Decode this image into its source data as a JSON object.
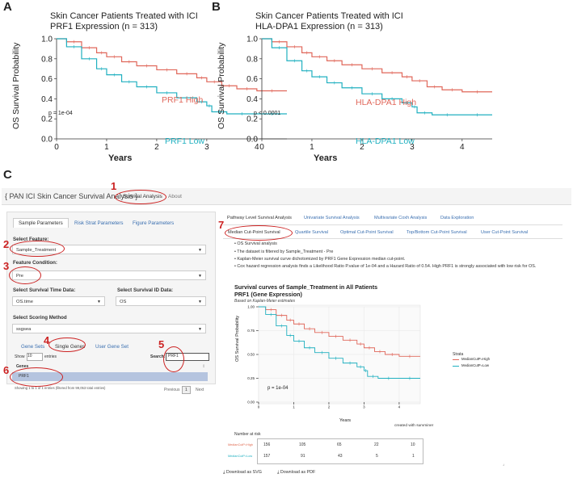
{
  "colors": {
    "high": "#e0675a",
    "low": "#20b0c0",
    "highRisk": "#e06a50",
    "lowRisk": "#20b0c0",
    "annot": "#cc2222",
    "tabLink": "#3a6fb0",
    "rowHighlight": "#b5c4df"
  },
  "panelA": {
    "letter": "A",
    "title_line1": "Skin Cancer Patients Treated with ICI",
    "title_line2": "PRF1 Expression (n = 313)",
    "ylabel": "OS Survival Probability",
    "xlabel": "Years",
    "pvalue": "p = 1e-04",
    "high_label": "PRF1 High",
    "low_label": "PRF1 Low"
  },
  "panelB": {
    "letter": "B",
    "title_line1": "Skin Cancer Patients Treated with ICI",
    "title_line2": "HLA-DPA1 Expression (n = 313)",
    "ylabel": "OS Survival Probability",
    "xlabel": "Years",
    "pvalue": "p < 0.0001",
    "high_label": "HLA-DPA1 High",
    "low_label": "HLA-DPA1 Low"
  },
  "km_axes": {
    "x_ticks": [
      "0",
      "1",
      "2",
      "3",
      "4"
    ],
    "y_ticks": [
      "0.0",
      "0.2",
      "0.4",
      "0.6",
      "0.8",
      "1.0"
    ]
  },
  "panelC": {
    "letter": "C",
    "app_title": "{ PAN ICI Skin Cancer Survival Analysis }",
    "nav": [
      "Survival Analysis",
      "About"
    ],
    "left_tabs": [
      "Sample Parameters",
      "Risk Strat Parameters",
      "Figure Parameters"
    ],
    "select_feature_label": "Select Feature:",
    "select_feature_value": "Sample_Treatment",
    "feature_condition_label": "Feature Condition:",
    "feature_condition_value": "Pre",
    "survival_time_label": "Select Survival Time Data:",
    "survival_time_value": "OS.time",
    "survival_id_label": "Select Survival ID Data:",
    "survival_id_value": "OS",
    "scoring_label": "Select Scoring Method",
    "scoring_value": "ssgsea",
    "gene_tabs": [
      "Gene Sets",
      "Single Genes",
      "User Gene Set"
    ],
    "show_label": "Show",
    "show_value": "10",
    "entries_label": "entries",
    "search_label": "Search:",
    "search_value": "PRF1",
    "genes_header": "Genes",
    "gene_row": "PRF1",
    "showing_text": "Showing 1 to 1 of 1 entries (filtered from 99,053 total entries)",
    "pager": [
      "Previous",
      "1",
      "Next"
    ],
    "right_tabs_row1": [
      "Pathway Level Survival Analysis",
      "Univariate Survival Analysis",
      "Multivariate Coxh Analysis",
      "Data Exploration"
    ],
    "right_tabs_row2": [
      "Median Cut-Point Survival",
      "Quartile Survival",
      "Optimal Cut-Point Survival",
      "Top/Bottom Cut-Point Survival",
      "User Cut-Point Survival"
    ],
    "bullets": [
      "OS Survival analysis",
      "The dataset is filtered by Sample_Treatment - Pre",
      "Kaplan-Meier survival curve dichotomized by PRF1 Gene Expression median cut-point.",
      "Cox hazard regression analysis finds a Likelihood Ratio P.value of 1e-04 and a Hazard Ratio of 0.54. High PRF1 is strongly associated with low risk for OS."
    ],
    "plot_title_line1": "Survival curves of Sample_Treatment  in All Patients",
    "plot_title_line2": "PRF1 (Gene Expression)",
    "plot_subtitle": "Based on Kaplan-Meier estimates",
    "plot_ylabel": "OS Survival Probability",
    "plot_xlabel": "Years",
    "plot_pvalue": "p = 1e-04",
    "plot_x_ticks": [
      "0",
      "1",
      "2",
      "3",
      "4"
    ],
    "plot_y_ticks": [
      "0.00",
      "0.25",
      "0.50",
      "0.75",
      "1.00"
    ],
    "credit": "created with survminer",
    "strata_title": "Strata",
    "strata": [
      "MedianCutP=High",
      "MedianCutP=Low"
    ],
    "risk_title": "Number at risk",
    "risk_rows": [
      {
        "label": "MedianCutP=High",
        "values": [
          "156",
          "105",
          "65",
          "22",
          "10"
        ]
      },
      {
        "label": "MedianCutP=Low",
        "values": [
          "157",
          "91",
          "43",
          "5",
          "1"
        ]
      }
    ],
    "downloads": [
      "Download as SVG",
      "Download as PDF"
    ],
    "annotations": [
      "1",
      "2",
      "3",
      "4",
      "5",
      "6",
      "7"
    ]
  },
  "chart_data": [
    {
      "type": "line",
      "title": "Skin Cancer Patients Treated with ICI PRF1 Expression (n = 313)",
      "xlabel": "Years",
      "ylabel": "OS Survival Probability",
      "xlim": [
        0,
        4.6
      ],
      "ylim": [
        0,
        1
      ],
      "series": [
        {
          "name": "PRF1 High",
          "x": [
            0,
            0.2,
            0.5,
            0.8,
            1.0,
            1.3,
            1.6,
            2.0,
            2.4,
            2.8,
            3.0,
            3.3,
            3.6,
            4.0,
            4.6
          ],
          "y": [
            1.0,
            0.97,
            0.91,
            0.86,
            0.82,
            0.77,
            0.73,
            0.69,
            0.65,
            0.61,
            0.57,
            0.53,
            0.5,
            0.48,
            0.48
          ]
        },
        {
          "name": "PRF1 Low",
          "x": [
            0,
            0.2,
            0.5,
            0.8,
            1.0,
            1.3,
            1.6,
            2.0,
            2.4,
            2.8,
            3.0,
            3.1,
            3.4,
            4.0,
            4.6
          ],
          "y": [
            1.0,
            0.92,
            0.8,
            0.7,
            0.64,
            0.57,
            0.52,
            0.46,
            0.41,
            0.37,
            0.33,
            0.27,
            0.25,
            0.25,
            0.25
          ]
        }
      ]
    },
    {
      "type": "line",
      "title": "Skin Cancer Patients Treated with ICI HLA-DPA1 Expression (n = 313)",
      "xlabel": "Years",
      "ylabel": "OS Survival Probability",
      "xlim": [
        0,
        4.6
      ],
      "ylim": [
        0,
        1
      ],
      "series": [
        {
          "name": "HLA-DPA1 High",
          "x": [
            0,
            0.2,
            0.5,
            0.8,
            1.0,
            1.3,
            1.6,
            2.0,
            2.4,
            2.8,
            3.0,
            3.3,
            3.6,
            4.0,
            4.6
          ],
          "y": [
            1.0,
            0.97,
            0.92,
            0.86,
            0.82,
            0.78,
            0.74,
            0.7,
            0.66,
            0.62,
            0.58,
            0.52,
            0.49,
            0.47,
            0.47
          ]
        },
        {
          "name": "HLA-DPA1 Low",
          "x": [
            0,
            0.2,
            0.5,
            0.8,
            1.0,
            1.3,
            1.6,
            2.0,
            2.4,
            2.8,
            3.0,
            3.1,
            3.4,
            4.0,
            4.6
          ],
          "y": [
            1.0,
            0.91,
            0.78,
            0.68,
            0.62,
            0.56,
            0.51,
            0.45,
            0.4,
            0.36,
            0.32,
            0.26,
            0.24,
            0.24,
            0.24
          ]
        }
      ]
    },
    {
      "type": "line",
      "title": "Survival curves of Sample_Treatment  in All Patients PRF1 (Gene Expression)",
      "xlabel": "Years",
      "ylabel": "OS Survival Probability",
      "xlim": [
        0,
        4.6
      ],
      "ylim": [
        0,
        1
      ],
      "series": [
        {
          "name": "MedianCutP=High",
          "x": [
            0,
            0.2,
            0.5,
            0.8,
            1.0,
            1.3,
            1.6,
            2.0,
            2.4,
            2.8,
            3.0,
            3.3,
            3.6,
            4.0,
            4.6
          ],
          "y": [
            1.0,
            0.97,
            0.91,
            0.86,
            0.82,
            0.77,
            0.73,
            0.69,
            0.65,
            0.61,
            0.57,
            0.53,
            0.5,
            0.48,
            0.48
          ]
        },
        {
          "name": "MedianCutP=Low",
          "x": [
            0,
            0.2,
            0.5,
            0.8,
            1.0,
            1.3,
            1.6,
            2.0,
            2.4,
            2.8,
            3.0,
            3.1,
            3.4,
            4.0,
            4.6
          ],
          "y": [
            1.0,
            0.92,
            0.8,
            0.7,
            0.64,
            0.57,
            0.52,
            0.46,
            0.41,
            0.37,
            0.33,
            0.27,
            0.25,
            0.25,
            0.25
          ]
        }
      ]
    }
  ]
}
